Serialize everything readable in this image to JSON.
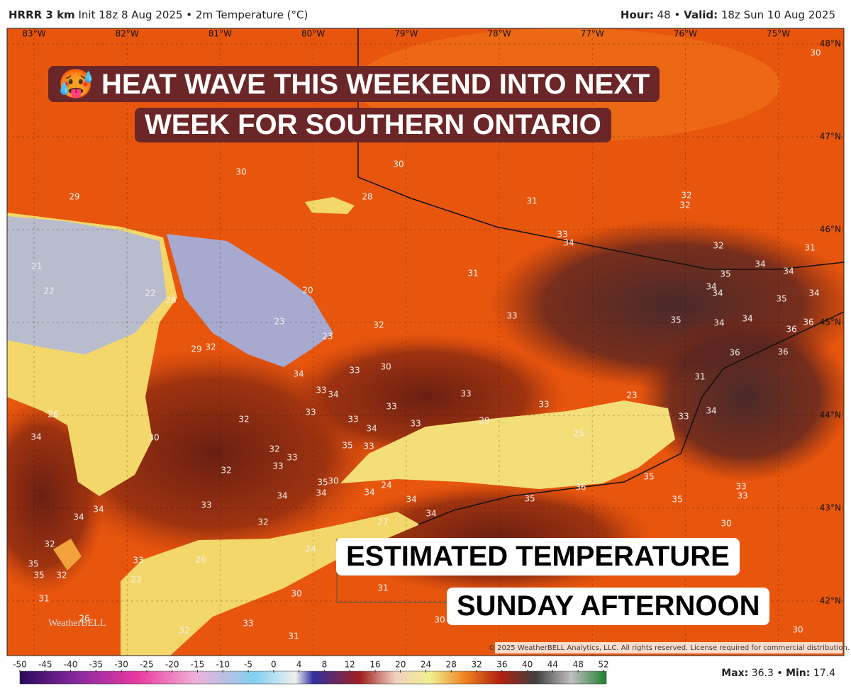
{
  "header": {
    "model": "HRRR 3 km",
    "init": "Init 18z 8 Aug 2025",
    "separator": "•",
    "field": "2m Temperature (°C)",
    "hour_label": "Hour:",
    "hour": 48,
    "valid_label": "Valid:",
    "valid": "18z Sun 10 Aug 2025"
  },
  "map": {
    "longitudes": [
      "83°W",
      "82°W",
      "81°W",
      "80°W",
      "79°W",
      "78°W",
      "77°W",
      "76°W",
      "75°W"
    ],
    "latitudes": [
      "48°N",
      "47°N",
      "46°N",
      "45°N",
      "44°N",
      "43°N",
      "42°N"
    ],
    "temperature_labels": [
      30,
      30,
      30,
      29,
      28,
      31,
      32,
      32,
      33,
      34,
      32,
      31,
      21,
      31,
      35,
      34,
      34,
      22,
      22,
      34,
      34,
      35,
      34,
      26,
      20,
      23,
      33,
      35,
      34,
      34,
      36,
      36,
      32,
      23,
      29,
      32,
      36,
      36,
      34,
      33,
      30,
      33,
      34,
      33,
      31,
      26,
      33,
      33,
      33,
      23,
      32,
      33,
      34,
      33,
      29,
      33,
      34,
      25,
      34,
      30,
      32,
      33,
      35,
      33,
      32,
      33,
      35,
      30,
      24,
      34,
      34,
      34,
      36,
      35,
      33,
      33,
      35,
      35,
      34,
      34,
      34,
      33,
      34,
      27,
      32,
      30,
      32,
      24,
      33,
      26,
      35,
      35,
      32,
      23,
      31,
      30,
      31,
      26,
      33,
      30,
      32,
      31,
      30
    ],
    "logo": "WeatherBELL",
    "copyright": "© 2025 WeatherBELL Analytics, LLC. All rights reserved. License required for commercial distribution."
  },
  "overlay": {
    "emoji": "🥵",
    "headline_line1": "HEAT WAVE THIS WEEKEND INTO NEXT",
    "headline_line2": "WEEK FOR SOUTHERN ONTARIO",
    "caption_line1": "ESTIMATED TEMPERATURE",
    "caption_line2": "SUNDAY AFTERNOON"
  },
  "colorbar": {
    "ticks": [
      -50,
      -45,
      -40,
      -35,
      -30,
      -25,
      -20,
      -15,
      -10,
      -5,
      0,
      4,
      8,
      12,
      16,
      20,
      24,
      28,
      32,
      36,
      40,
      44,
      48,
      52
    ]
  },
  "footer": {
    "max_label": "Max:",
    "max": 36.3,
    "min_label": "Min:",
    "min": 17.4
  }
}
